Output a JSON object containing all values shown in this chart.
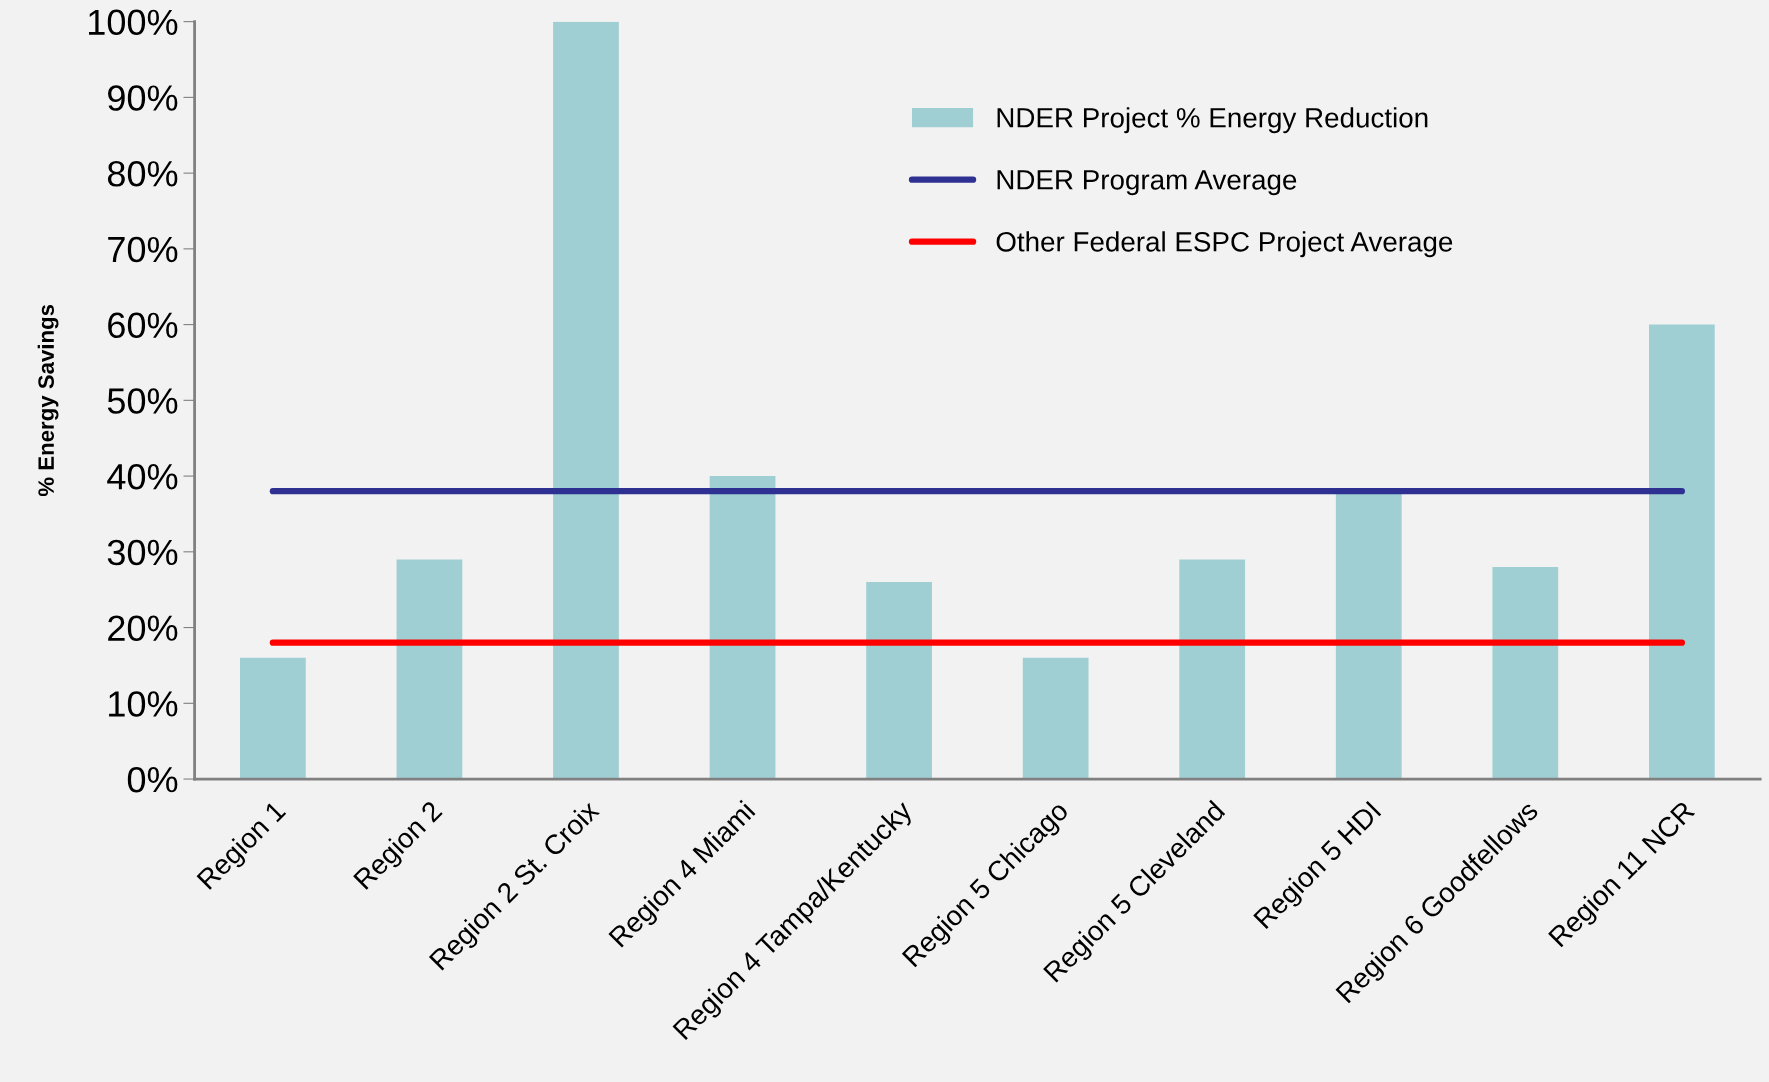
{
  "chart_data": {
    "type": "bar",
    "ylabel": "% Energy Savings",
    "categories": [
      "Region 1",
      "Region 2",
      "Region 2 St. Croix",
      "Region 4 Miami",
      "Region 4 Tampa/Kentucky",
      "Region 5 Chicago",
      "Region 5 Cleveland",
      "Region 5 HDI",
      "Region 6 Goodfellows",
      "Region 11 NCR"
    ],
    "series": [
      {
        "name": "NDER Project % Energy Reduction",
        "color": "#9fcfd3",
        "values": [
          16,
          29,
          100,
          40,
          26,
          16,
          29,
          38,
          28,
          60
        ]
      },
      {
        "name": "NDER Program Average",
        "type": "line",
        "color": "#2e3192",
        "values": [
          38,
          38,
          38,
          38,
          38,
          38,
          38,
          38,
          38,
          38
        ]
      },
      {
        "name": "Other Federal ESPC Project Average",
        "type": "line",
        "color": "#ff0000",
        "values": [
          18,
          18,
          18,
          18,
          18,
          18,
          18,
          18,
          18,
          18
        ]
      }
    ],
    "ylim": [
      0,
      100
    ],
    "yticks": [
      {
        "value": 0,
        "label": "0%"
      },
      {
        "value": 10,
        "label": "10%"
      },
      {
        "value": 20,
        "label": "20%"
      },
      {
        "value": 30,
        "label": "30%"
      },
      {
        "value": 40,
        "label": "40%"
      },
      {
        "value": 50,
        "label": "50%"
      },
      {
        "value": 60,
        "label": "60%"
      },
      {
        "value": 70,
        "label": "70%"
      },
      {
        "value": 80,
        "label": "80%"
      },
      {
        "value": 90,
        "label": "90%"
      },
      {
        "value": 100,
        "label": "100%"
      }
    ],
    "grid": false,
    "legend": "top right",
    "marker": "none",
    "line_style": "solid"
  }
}
